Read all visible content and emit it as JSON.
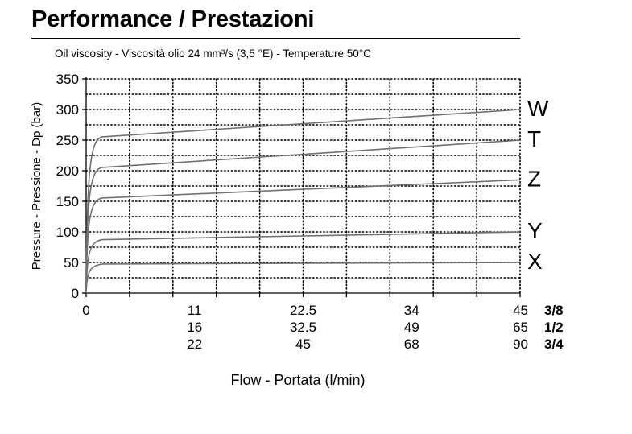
{
  "header": {
    "title": "Performance / Prestazioni",
    "subtitle": "Oil viscosity - Viscosità olio 24 mm³/s (3,5 °E) - Temperature 50°C"
  },
  "chart_data": {
    "type": "line",
    "title": "Performance / Prestazioni",
    "subtitle": "Oil viscosity - Viscosità olio 24 mm³/s (3,5 °E) - Temperature 50°C",
    "xlabel": "Flow - Portata (l/min)",
    "ylabel": "Pressure - Pressione - Dp (bar)",
    "xlim": [
      0,
      45
    ],
    "ylim": [
      0,
      350
    ],
    "yticks": [
      0,
      50,
      100,
      150,
      200,
      250,
      300,
      350
    ],
    "grid": true,
    "x_scales": [
      {
        "name": "3/8",
        "ticks": [
          "0",
          "11",
          "22.5",
          "34",
          "45"
        ]
      },
      {
        "name": "1/2",
        "ticks": [
          "",
          "16",
          "32.5",
          "49",
          "65"
        ]
      },
      {
        "name": "3/4",
        "ticks": [
          "",
          "22",
          "45",
          "68",
          "90"
        ]
      }
    ],
    "series": [
      {
        "name": "W",
        "x": [
          0,
          1,
          45
        ],
        "y": [
          0,
          255,
          300
        ]
      },
      {
        "name": "T",
        "x": [
          0,
          1,
          45
        ],
        "y": [
          0,
          205,
          250
        ]
      },
      {
        "name": "Z",
        "x": [
          0,
          1,
          45
        ],
        "y": [
          0,
          155,
          185
        ]
      },
      {
        "name": "Y",
        "x": [
          0,
          1,
          45
        ],
        "y": [
          0,
          87,
          100
        ]
      },
      {
        "name": "X",
        "x": [
          0,
          1,
          45
        ],
        "y": [
          0,
          47,
          50
        ]
      }
    ]
  }
}
